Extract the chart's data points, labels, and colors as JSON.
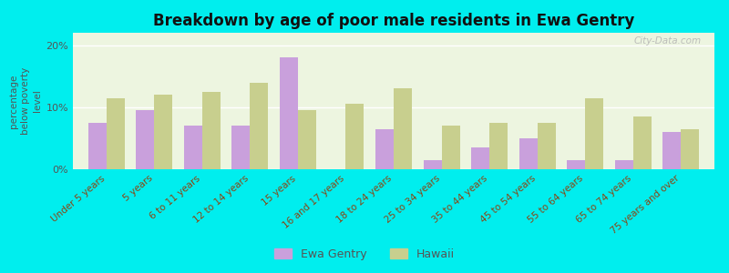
{
  "title": "Breakdown by age of poor male residents in Ewa Gentry",
  "categories": [
    "Under 5 years",
    "5 years",
    "6 to 11 years",
    "12 to 14 years",
    "15 years",
    "16 and 17 years",
    "18 to 24 years",
    "25 to 34 years",
    "35 to 44 years",
    "45 to 54 years",
    "55 to 64 years",
    "65 to 74 years",
    "75 years and over"
  ],
  "ewa_gentry": [
    7.5,
    9.5,
    7.0,
    7.0,
    18.0,
    0.0,
    6.5,
    1.5,
    3.5,
    5.0,
    1.5,
    1.5,
    6.0
  ],
  "hawaii": [
    11.5,
    12.0,
    12.5,
    14.0,
    9.5,
    10.5,
    13.0,
    7.0,
    7.5,
    7.5,
    11.5,
    8.5,
    6.5
  ],
  "ewa_color": "#c9a0dc",
  "hawaii_color": "#c8cf8e",
  "ylabel": "percentage\nbelow poverty\nlevel",
  "ylim": [
    0,
    22
  ],
  "yticks": [
    0,
    10,
    20
  ],
  "ytick_labels": [
    "0%",
    "10%",
    "20%"
  ],
  "background_color": "#edf5e0",
  "outer_background": "#00eeee",
  "bar_width": 0.38,
  "legend_ewa": "Ewa Gentry",
  "legend_hawaii": "Hawaii",
  "watermark": "City-Data.com"
}
